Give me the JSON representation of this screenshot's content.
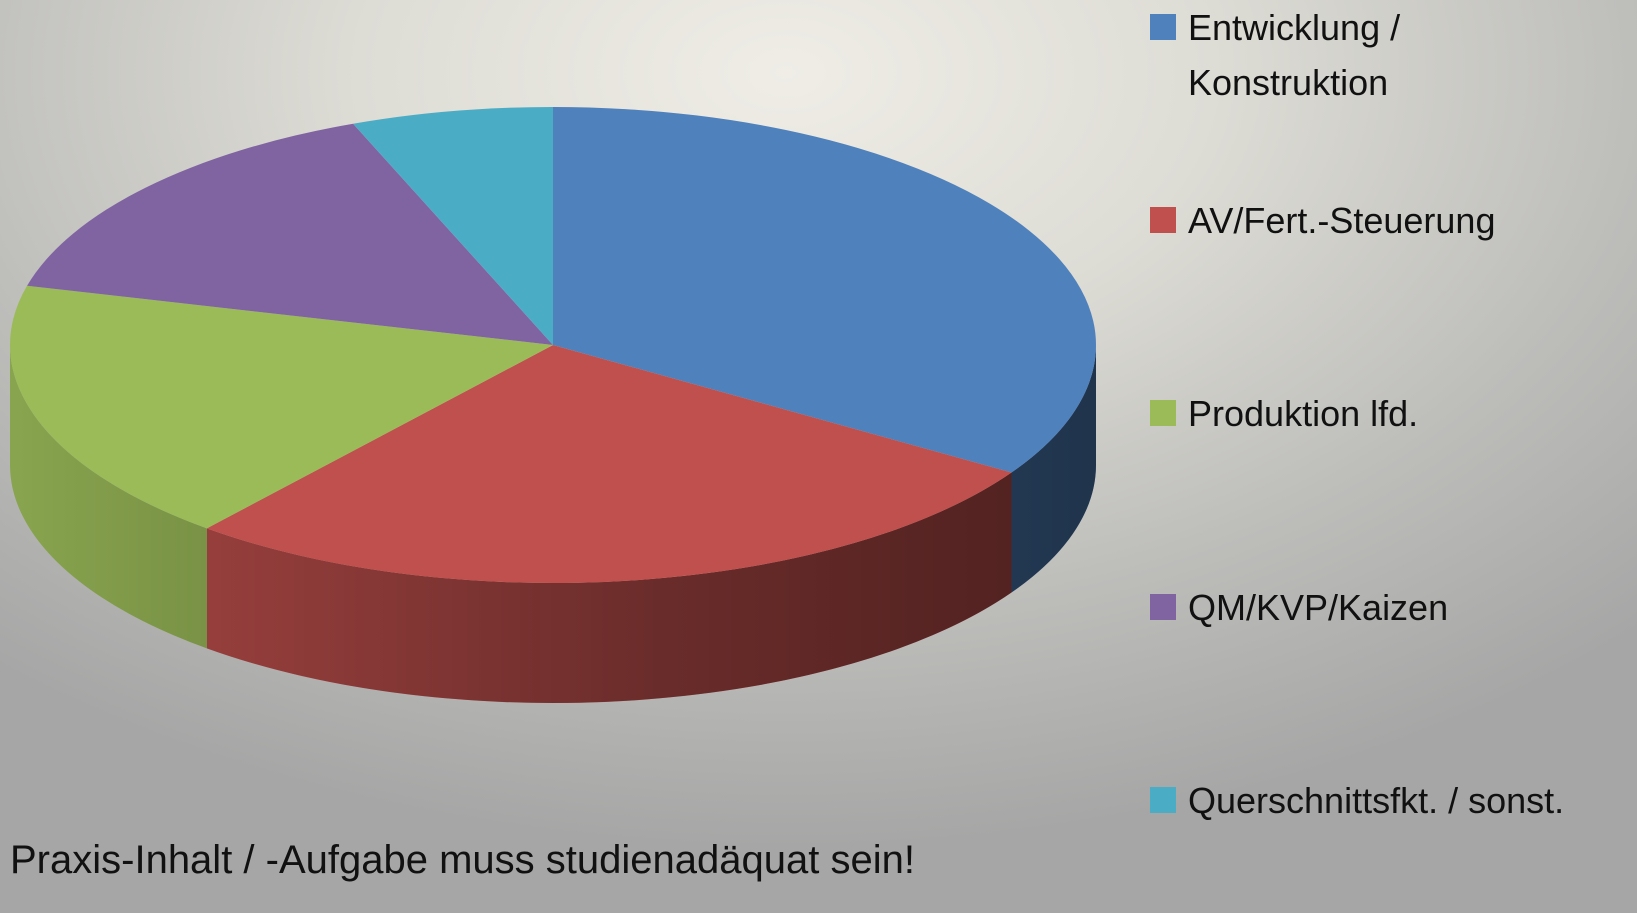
{
  "chart_data": {
    "type": "pie",
    "three_d": true,
    "categories": [
      "Entwicklung / Konstruktion",
      "AV/Fert.-Steuerung",
      "Produktion lfd.",
      "QM/KVP/Kaizen",
      "Querschnittsfkt. / sonst."
    ],
    "values": [
      34,
      27,
      18,
      15,
      6
    ],
    "colors": [
      "#4f81bd",
      "#c0504d",
      "#9bbb59",
      "#8064a2",
      "#4bacc6"
    ],
    "legend": "right",
    "annotation": "Praxis-Inhalt / -Aufgabe muss studienadäquat sein!"
  }
}
